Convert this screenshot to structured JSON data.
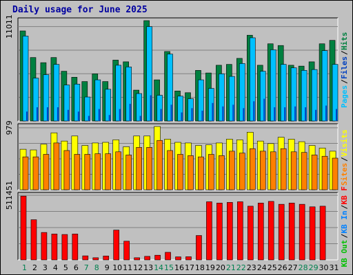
{
  "title": "Daily usage for June 2025",
  "colors": {
    "hits": "#008040",
    "files": "#00c0ff",
    "pages": "#0040c0",
    "visits": "#ffff00",
    "sites": "#ff8000",
    "kbf": "#ff0000",
    "kbin": "#0080ff",
    "kbout": "#00c000",
    "weekend_day": "#00804f",
    "weekday_day": "#000000"
  },
  "chart_data": [
    {
      "type": "bar",
      "panel": "top",
      "y_tick_label": "11011",
      "ylim": [
        0,
        11700
      ],
      "legend": [
        {
          "label": "Pages",
          "color": "#00c0ff"
        },
        {
          "label": "Files",
          "color": "#0040c0"
        },
        {
          "label": "Hits",
          "color": "#008040"
        }
      ],
      "categories": [
        "1",
        "2",
        "3",
        "4",
        "5",
        "6",
        "7",
        "8",
        "9",
        "10",
        "11",
        "12",
        "13",
        "14",
        "15",
        "16",
        "17",
        "18",
        "19",
        "20",
        "21",
        "22",
        "23",
        "24",
        "25",
        "26",
        "27",
        "28",
        "29",
        "30",
        "31"
      ],
      "series": [
        {
          "name": "Hits",
          "values": [
            10500,
            7400,
            6800,
            7400,
            5800,
            5100,
            4600,
            5500,
            4600,
            7100,
            6900,
            3600,
            11700,
            4800,
            8100,
            3500,
            3300,
            5900,
            5600,
            6500,
            6600,
            7300,
            10000,
            6500,
            9000,
            8800,
            6500,
            6400,
            6900,
            9000,
            9400
          ]
        },
        {
          "name": "Files",
          "values": [
            9900,
            5000,
            5400,
            6600,
            4200,
            4300,
            2800,
            4800,
            3700,
            6500,
            6300,
            3200,
            11000,
            3000,
            7800,
            2900,
            2600,
            4800,
            3800,
            5500,
            5200,
            6700,
            9700,
            5800,
            8300,
            6600,
            6200,
            5900,
            6000,
            8200,
            6600
          ]
        },
        {
          "name": "Pages",
          "values": [
            1100,
            1600,
            1600,
            1600,
            1300,
            1100,
            600,
            1400,
            700,
            1400,
            2000,
            600,
            3000,
            1400,
            1900,
            1000,
            1500,
            1200,
            2100,
            1700,
            1900,
            1500,
            2300,
            2600,
            1600,
            1600,
            1700,
            1600,
            1300,
            1800,
            1400
          ]
        }
      ]
    },
    {
      "type": "bar",
      "panel": "middle",
      "y_tick_label": "979",
      "ylim": [
        0,
        1000
      ],
      "legend": [
        {
          "label": "Sites",
          "color": "#ff8000"
        },
        {
          "label": "Visits",
          "color": "#ffff00"
        }
      ],
      "categories": [
        "1",
        "2",
        "3",
        "4",
        "5",
        "6",
        "7",
        "8",
        "9",
        "10",
        "11",
        "12",
        "13",
        "14",
        "15",
        "16",
        "17",
        "18",
        "19",
        "20",
        "21",
        "22",
        "23",
        "24",
        "25",
        "26",
        "27",
        "28",
        "29",
        "30",
        "31"
      ],
      "series": [
        {
          "name": "Visits",
          "values": [
            640,
            630,
            720,
            900,
            770,
            850,
            700,
            740,
            750,
            790,
            680,
            850,
            850,
            1000,
            800,
            750,
            740,
            700,
            710,
            740,
            800,
            790,
            910,
            770,
            730,
            830,
            800,
            760,
            700,
            660,
            610
          ]
        },
        {
          "name": "Sites",
          "values": [
            520,
            520,
            560,
            740,
            620,
            560,
            560,
            570,
            570,
            600,
            550,
            670,
            670,
            780,
            620,
            560,
            540,
            520,
            560,
            540,
            610,
            580,
            650,
            610,
            600,
            650,
            600,
            590,
            550,
            530,
            500
          ]
        }
      ]
    },
    {
      "type": "bar",
      "panel": "bottom",
      "y_tick_label": "511451",
      "ylim": [
        0,
        511451
      ],
      "legend": [
        {
          "label": "KB Out",
          "color": "#00c000"
        },
        {
          "label": "KB In",
          "color": "#0080ff"
        },
        {
          "label": "KB F",
          "color": "#ff0000"
        }
      ],
      "categories": [
        "1",
        "2",
        "3",
        "4",
        "5",
        "6",
        "7",
        "8",
        "9",
        "10",
        "11",
        "12",
        "13",
        "14",
        "15",
        "16",
        "17",
        "18",
        "19",
        "20",
        "21",
        "22",
        "23",
        "24",
        "25",
        "26",
        "27",
        "28",
        "29",
        "30",
        "31"
      ],
      "series": [
        {
          "name": "KB F",
          "values": [
            505000,
            318000,
            217000,
            205000,
            201000,
            205000,
            32000,
            17000,
            31000,
            236000,
            148000,
            17000,
            28000,
            37000,
            60000,
            24000,
            25000,
            193000,
            460000,
            450000,
            455000,
            460000,
            425000,
            450000,
            463000,
            440000,
            450000,
            440000,
            420000,
            425000,
            0
          ]
        }
      ]
    }
  ],
  "x_labels": [
    "1",
    "2",
    "3",
    "4",
    "5",
    "6",
    "7",
    "8",
    "9",
    "10",
    "11",
    "12",
    "13",
    "14",
    "15",
    "16",
    "17",
    "18",
    "19",
    "20",
    "21",
    "22",
    "23",
    "24",
    "25",
    "26",
    "27",
    "28",
    "29",
    "30",
    "31"
  ],
  "weekend_days": [
    1,
    7,
    8,
    14,
    15,
    21,
    22,
    28,
    29
  ]
}
